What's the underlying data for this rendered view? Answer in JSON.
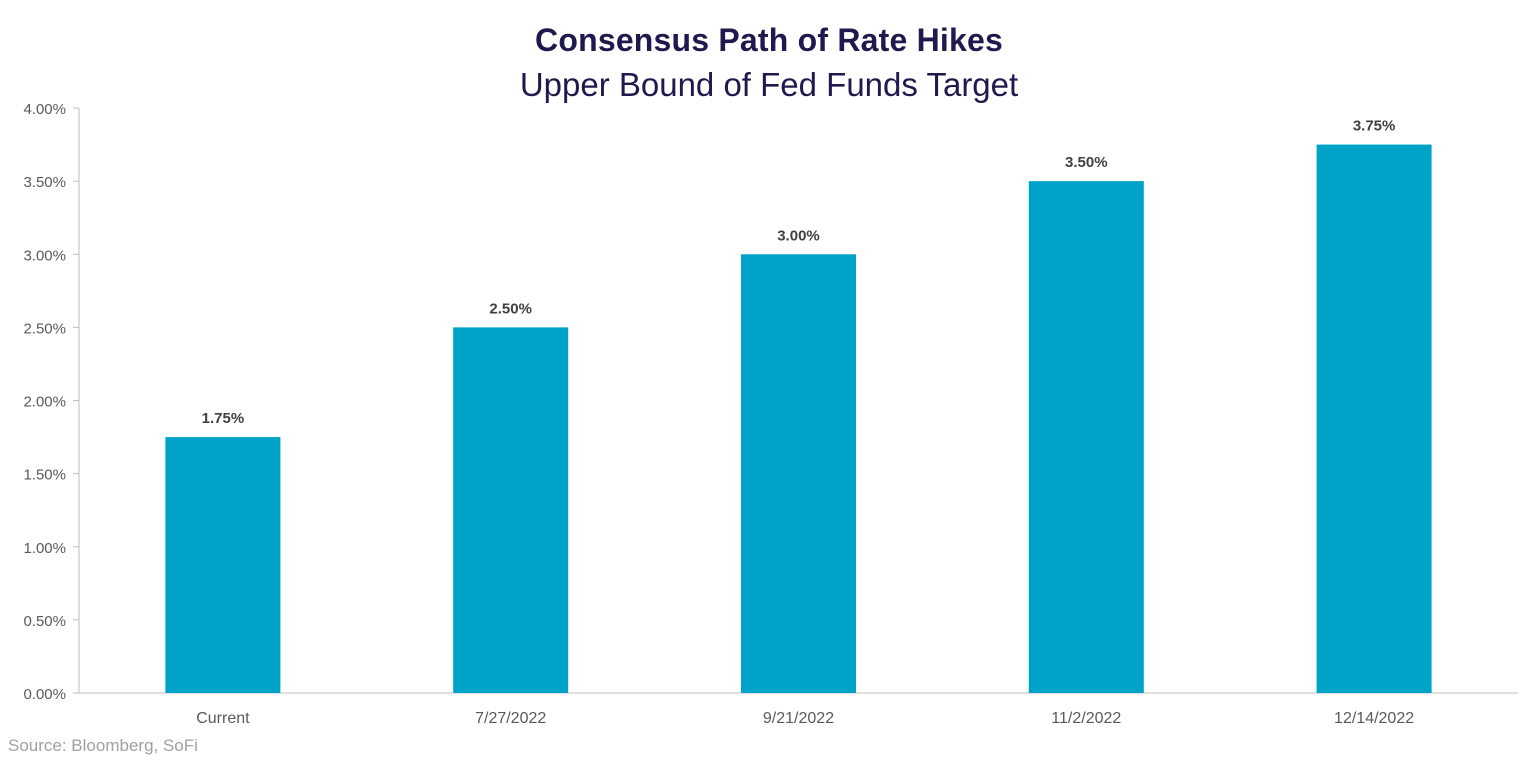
{
  "chart_data": {
    "type": "bar",
    "title": "Consensus Path of Rate Hikes",
    "subtitle": "Upper Bound of Fed Funds Target",
    "categories": [
      "Current",
      "7/27/2022",
      "9/21/2022",
      "11/2/2022",
      "12/14/2022"
    ],
    "values": [
      1.75,
      2.5,
      3.0,
      3.5,
      3.75
    ],
    "data_labels": [
      "1.75%",
      "2.50%",
      "3.00%",
      "3.50%",
      "3.75%"
    ],
    "y_ticks": [
      0,
      0.5,
      1.0,
      1.5,
      2.0,
      2.5,
      3.0,
      3.5,
      4.0
    ],
    "y_tick_labels": [
      "0.00%",
      "0.50%",
      "1.00%",
      "1.50%",
      "2.00%",
      "2.50%",
      "3.00%",
      "3.50%",
      "4.00%"
    ],
    "ylim": [
      0,
      4.0
    ],
    "xlabel": "",
    "ylabel": "",
    "grid": false,
    "legend": "none",
    "bar_color": "#00a3c8"
  },
  "source": "Source: Bloomberg, SoFi"
}
